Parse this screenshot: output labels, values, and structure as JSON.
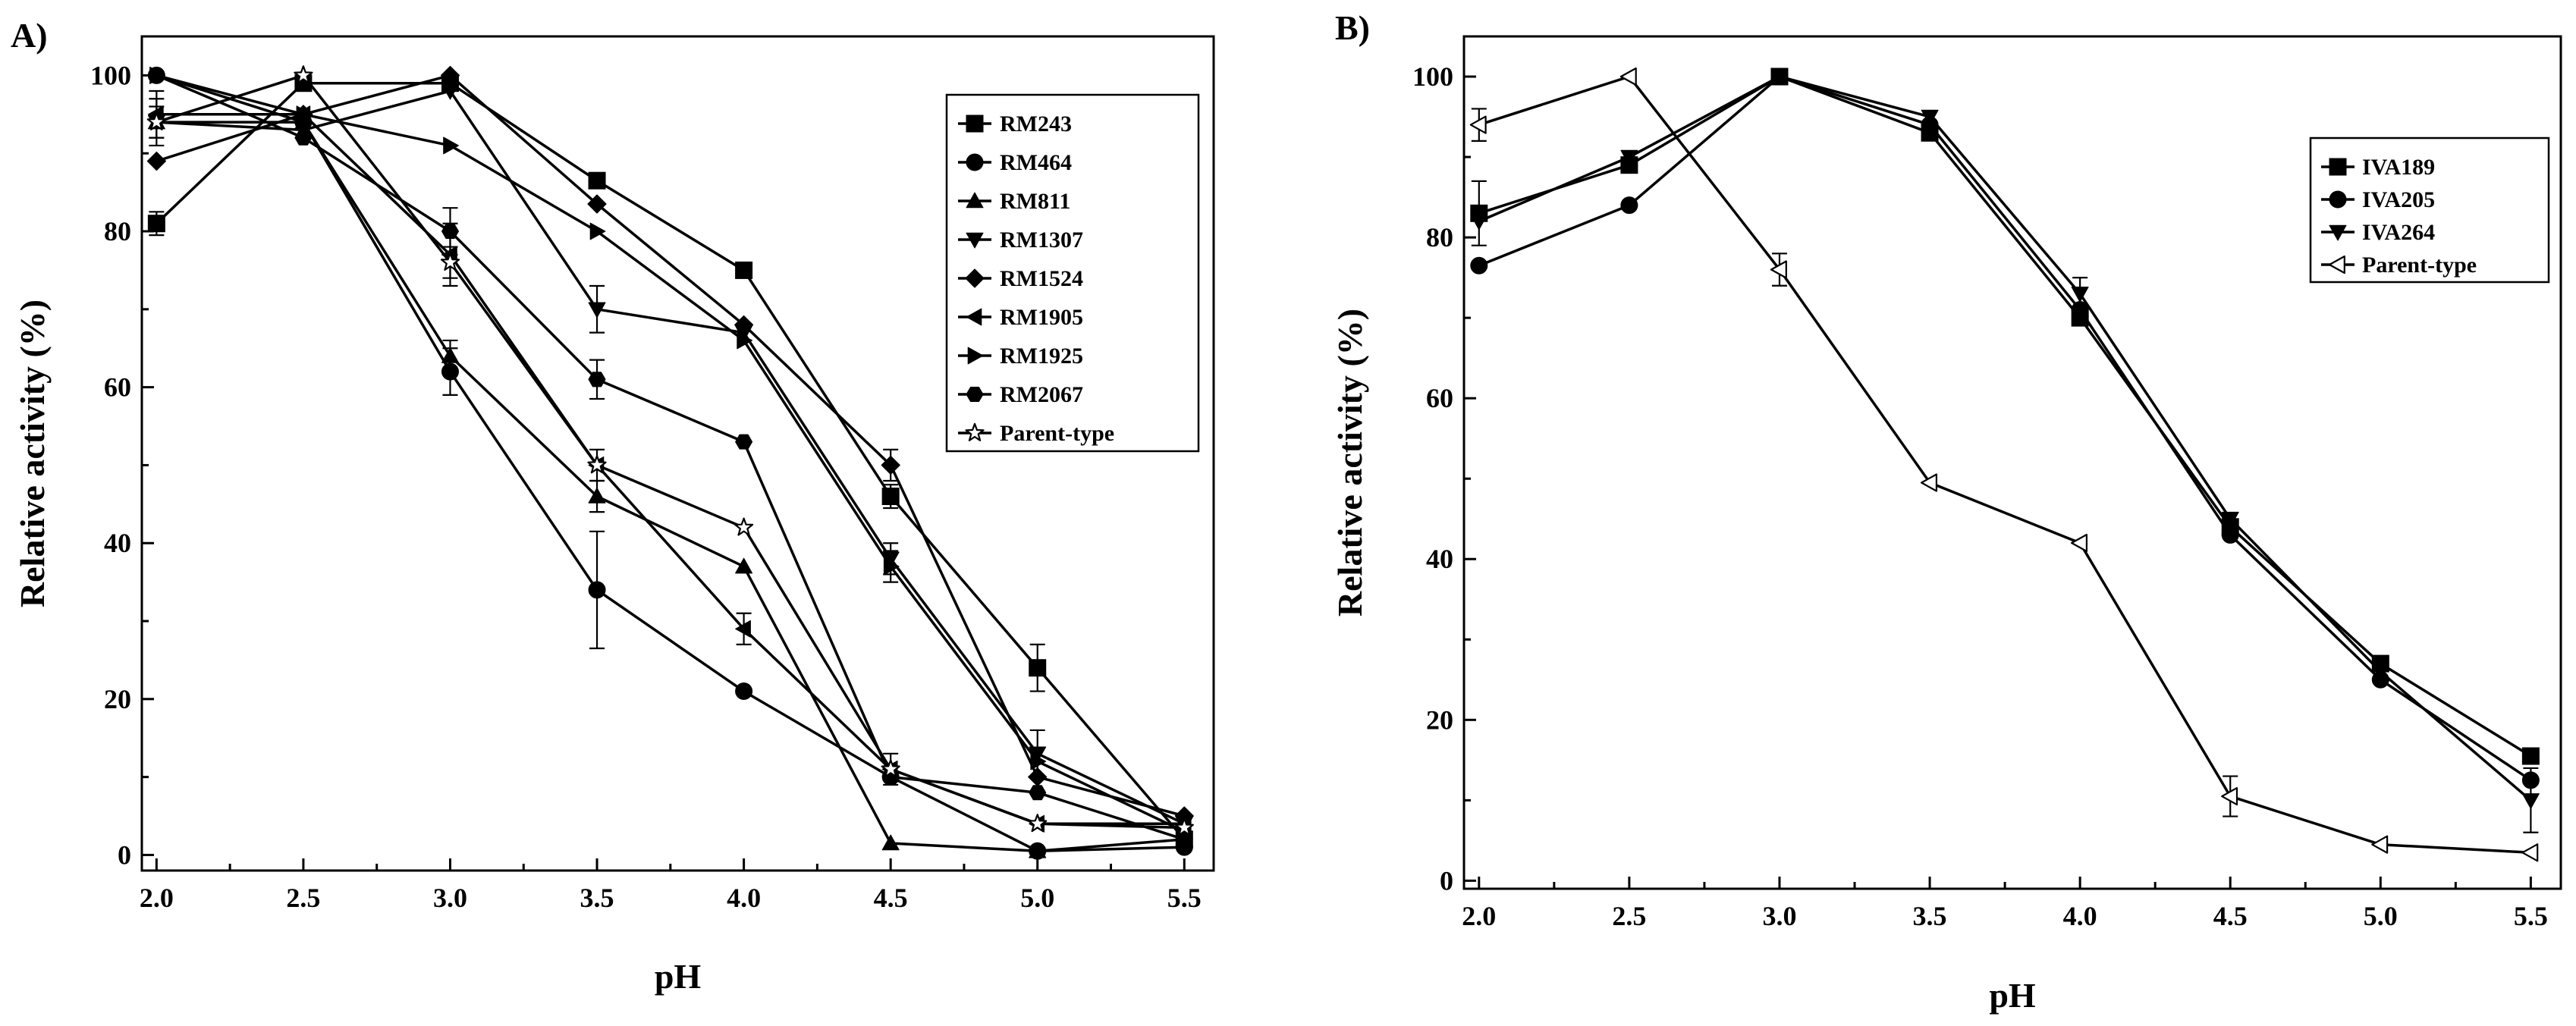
{
  "chart_data": [
    {
      "type": "line",
      "panel_label": "A)",
      "title": "",
      "xlabel": "pH",
      "ylabel": "Relative activity (%)",
      "xlim": [
        1.95,
        5.6
      ],
      "ylim": [
        -2,
        105
      ],
      "xticks": [
        2.0,
        2.5,
        3.0,
        3.5,
        4.0,
        4.5,
        5.0,
        5.5
      ],
      "xtick_labels": [
        "2.0",
        "2.5",
        "3.0",
        "3.5",
        "4.0",
        "4.5",
        "5.0",
        "5.5"
      ],
      "yticks": [
        0,
        20,
        40,
        60,
        80,
        100
      ],
      "ytick_labels": [
        "0",
        "20",
        "40",
        "60",
        "80",
        "100"
      ],
      "legend_position": "top-right",
      "x": [
        2.0,
        2.5,
        3.0,
        3.5,
        4.0,
        4.5,
        5.0,
        5.5
      ],
      "series": [
        {
          "name": "RM243",
          "marker": "square",
          "values": [
            81,
            99,
            99,
            86.5,
            75,
            46,
            24,
            2
          ],
          "errors": [
            1.5,
            1,
            1,
            1,
            1,
            1.5,
            3,
            1
          ]
        },
        {
          "name": "RM464",
          "marker": "circle",
          "values": [
            100,
            94,
            62,
            34,
            21,
            10,
            0.5,
            1
          ],
          "errors": [
            1,
            1,
            3,
            7.5,
            1,
            1,
            1,
            1
          ]
        },
        {
          "name": "RM811",
          "marker": "triangle-up",
          "values": [
            94,
            94,
            64,
            46,
            37,
            1.5,
            0.5,
            2
          ],
          "errors": [
            2,
            1,
            2,
            2,
            1,
            1,
            1,
            1
          ]
        },
        {
          "name": "RM1307",
          "marker": "triangle-down",
          "values": [
            94,
            93,
            98,
            70,
            67,
            38,
            13,
            4
          ],
          "errors": [
            3,
            1,
            1,
            3,
            1,
            2,
            3,
            1
          ]
        },
        {
          "name": "RM1524",
          "marker": "diamond",
          "values": [
            89,
            95,
            100,
            83.5,
            68,
            50,
            10,
            5
          ],
          "errors": [
            1,
            1,
            1,
            1,
            1,
            2,
            2,
            1
          ]
        },
        {
          "name": "RM1905",
          "marker": "triangle-left",
          "values": [
            95,
            95,
            77,
            50,
            29,
            11,
            4,
            4
          ],
          "errors": [
            3,
            1,
            4,
            2,
            2,
            1,
            1,
            1
          ]
        },
        {
          "name": "RM1925",
          "marker": "triangle-right",
          "values": [
            100,
            95,
            91,
            80,
            66,
            37,
            12,
            3
          ],
          "errors": [
            1,
            1,
            1,
            1,
            1,
            2,
            1,
            1
          ]
        },
        {
          "name": "RM2067",
          "marker": "hexagon",
          "values": [
            100,
            92,
            80,
            61,
            53,
            10,
            8,
            2
          ],
          "errors": [
            1,
            1,
            3,
            2.5,
            1,
            1,
            1,
            1
          ]
        },
        {
          "name": "Parent-type",
          "marker": "star-open",
          "values": [
            94,
            100,
            76,
            50,
            42,
            11,
            4,
            3.5
          ],
          "errors": [
            1,
            1,
            2,
            1,
            1,
            2,
            1,
            1
          ]
        }
      ]
    },
    {
      "type": "line",
      "panel_label": "B)",
      "title": "",
      "xlabel": "pH",
      "ylabel": "Relative activity (%)",
      "xlim": [
        1.95,
        5.6
      ],
      "ylim": [
        -1,
        105
      ],
      "xticks": [
        2.0,
        2.5,
        3.0,
        3.5,
        4.0,
        4.5,
        5.0,
        5.5
      ],
      "xtick_labels": [
        "2.0",
        "2.5",
        "3.0",
        "3.5",
        "4.0",
        "4.5",
        "5.0",
        "5.5"
      ],
      "yticks": [
        0,
        20,
        40,
        60,
        80,
        100
      ],
      "ytick_labels": [
        "0",
        "20",
        "40",
        "60",
        "80",
        "100"
      ],
      "legend_position": "top-right",
      "x": [
        2.0,
        2.5,
        3.0,
        3.5,
        4.0,
        4.5,
        5.0,
        5.5
      ],
      "series": [
        {
          "name": "IVA189",
          "marker": "square",
          "values": [
            83,
            89,
            100,
            93,
            70,
            44,
            27,
            15.5
          ],
          "errors": [
            4,
            1,
            1,
            1,
            1,
            1,
            1,
            1
          ]
        },
        {
          "name": "IVA205",
          "marker": "circle",
          "values": [
            76.5,
            84,
            100,
            94,
            71,
            43,
            25,
            12.5
          ],
          "errors": [
            1,
            1,
            1,
            1,
            1,
            1,
            1,
            1
          ]
        },
        {
          "name": "IVA264",
          "marker": "triangle-down",
          "values": [
            82,
            90,
            100,
            95,
            73,
            45,
            26,
            10
          ],
          "errors": [
            1,
            1,
            1,
            1,
            2,
            1,
            1,
            4
          ]
        },
        {
          "name": "Parent-type",
          "marker": "triangle-left-open",
          "values": [
            94,
            100,
            76,
            49.5,
            42,
            10.5,
            4.5,
            3.5
          ],
          "errors": [
            2,
            1,
            2,
            1,
            1,
            2.5,
            1,
            1
          ]
        }
      ]
    }
  ]
}
